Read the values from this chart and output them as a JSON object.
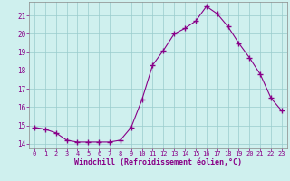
{
  "x": [
    0,
    1,
    2,
    3,
    4,
    5,
    6,
    7,
    8,
    9,
    10,
    11,
    12,
    13,
    14,
    15,
    16,
    17,
    18,
    19,
    20,
    21,
    22,
    23
  ],
  "y": [
    14.9,
    14.8,
    14.6,
    14.2,
    14.1,
    14.1,
    14.1,
    14.1,
    14.2,
    14.9,
    16.4,
    18.3,
    19.1,
    20.0,
    20.3,
    20.7,
    21.5,
    21.1,
    20.4,
    19.5,
    18.7,
    17.8,
    16.5,
    15.8
  ],
  "line_color": "#880088",
  "bg_color": "#cff0ee",
  "grid_color": "#99cccc",
  "xlabel": "Windchill (Refroidissement éolien,°C)",
  "ylim": [
    13.75,
    21.75
  ],
  "xlim": [
    -0.5,
    23.5
  ],
  "yticks": [
    14,
    15,
    16,
    17,
    18,
    19,
    20,
    21
  ],
  "xticks": [
    0,
    1,
    2,
    3,
    4,
    5,
    6,
    7,
    8,
    9,
    10,
    11,
    12,
    13,
    14,
    15,
    16,
    17,
    18,
    19,
    20,
    21,
    22,
    23
  ],
  "tick_color": "#880088",
  "label_color": "#880088",
  "font": "monospace",
  "xlabel_fontsize": 6.0,
  "xtick_fontsize": 5.0,
  "ytick_fontsize": 5.5
}
